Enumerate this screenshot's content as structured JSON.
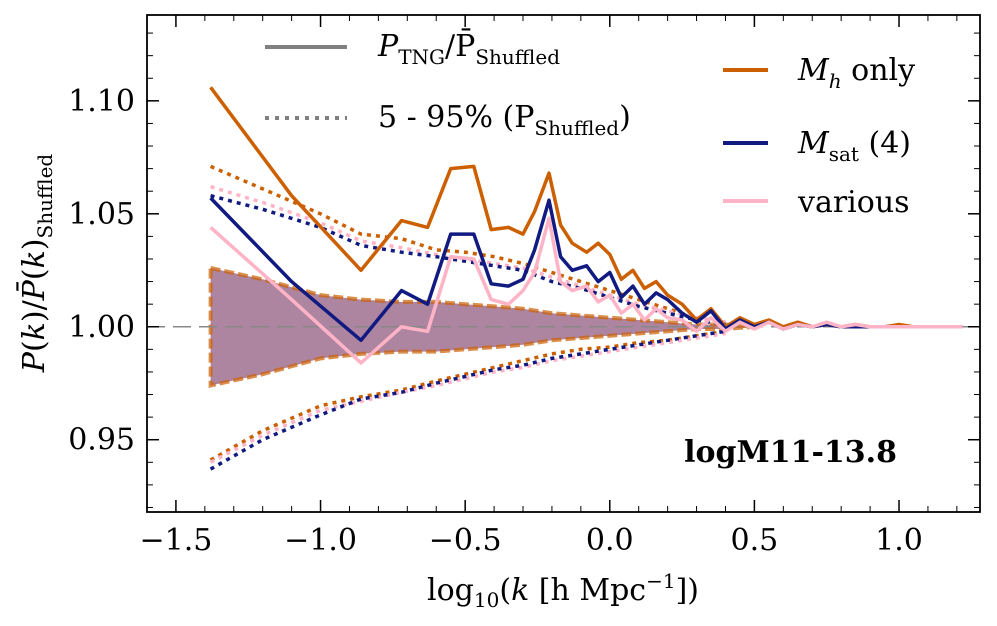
{
  "chart_data": {
    "type": "line",
    "title": "",
    "xlabel": "log10(k [h Mpc^-1])",
    "ylabel": "P(k)/P̄(k)Shuffled",
    "xlim": [
      -1.6,
      1.28
    ],
    "ylim": [
      0.918,
      1.138
    ],
    "xticks": [
      -1.5,
      -1.0,
      -0.5,
      0.0,
      0.5,
      1.0
    ],
    "xtick_labels": [
      "−1.5",
      "−1.0",
      "−0.5",
      "0.0",
      "0.5",
      "1.0"
    ],
    "yticks": [
      0.95,
      1.0,
      1.05,
      1.1
    ],
    "ytick_labels": [
      "0.95",
      "1.00",
      "1.05",
      "1.10"
    ],
    "reference_line": 1.0,
    "annotation": "logM11-13.8",
    "colors": {
      "orange": "#cc5f00",
      "navy": "#101a80",
      "pink": "#ffb3c6",
      "gray": "#808080",
      "band": "#a07090"
    },
    "legend_style": [
      {
        "label_main": "P",
        "label_sub": "TNG",
        "label_mid": "/P̄",
        "label_sub2": "Shuffled",
        "style": "solid"
      },
      {
        "label_main": "5 - 95% (P",
        "label_sub": "Shuffled",
        "label_end": ")",
        "style": "dotted"
      }
    ],
    "legend_series": [
      {
        "main": "M",
        "sub": "h",
        "rest": " only",
        "color": "#cc5f00"
      },
      {
        "main": "M",
        "sub": "sat",
        "rest": " (4)",
        "color": "#101a80"
      },
      {
        "main": "various",
        "sub": "",
        "rest": "",
        "color": "#ffb3c6"
      }
    ],
    "series": [
      {
        "name": "Mh only",
        "color": "#cc5f00",
        "x": [
          -1.38,
          -1.1,
          -0.86,
          -0.72,
          -0.63,
          -0.55,
          -0.47,
          -0.41,
          -0.35,
          -0.3,
          -0.26,
          -0.21,
          -0.17,
          -0.13,
          -0.08,
          -0.04,
          0.0,
          0.04,
          0.08,
          0.12,
          0.16,
          0.2,
          0.25,
          0.3,
          0.35,
          0.4,
          0.45,
          0.5,
          0.55,
          0.6,
          0.65,
          0.7,
          0.75,
          0.8,
          0.85,
          0.9,
          0.95,
          1.0,
          1.05,
          1.1,
          1.15,
          1.22
        ],
        "values": [
          1.106,
          1.058,
          1.025,
          1.047,
          1.044,
          1.07,
          1.071,
          1.043,
          1.044,
          1.041,
          1.051,
          1.068,
          1.045,
          1.037,
          1.033,
          1.037,
          1.032,
          1.021,
          1.025,
          1.017,
          1.02,
          1.014,
          1.01,
          1.003,
          1.008,
          1.0,
          1.004,
          1.001,
          1.003,
          1.0,
          1.002,
          1.0,
          1.001,
          1.0,
          1.001,
          1.0,
          1.0,
          1.001,
          1.0,
          1.0,
          1.0,
          1.0
        ]
      },
      {
        "name": "Msat (4)",
        "color": "#101a80",
        "x": [
          -1.38,
          -1.1,
          -0.86,
          -0.72,
          -0.63,
          -0.55,
          -0.47,
          -0.41,
          -0.35,
          -0.3,
          -0.26,
          -0.21,
          -0.17,
          -0.13,
          -0.08,
          -0.04,
          0.0,
          0.04,
          0.08,
          0.12,
          0.16,
          0.2,
          0.25,
          0.3,
          0.35,
          0.4,
          0.45,
          0.5,
          0.55,
          0.6,
          0.65,
          0.7,
          0.75,
          0.8,
          0.85,
          0.9,
          0.95,
          1.0,
          1.05,
          1.1,
          1.15,
          1.22
        ],
        "values": [
          1.057,
          1.02,
          0.994,
          1.016,
          1.01,
          1.041,
          1.041,
          1.019,
          1.018,
          1.021,
          1.034,
          1.056,
          1.031,
          1.025,
          1.027,
          1.02,
          1.024,
          1.013,
          1.018,
          1.01,
          1.015,
          1.012,
          1.006,
          1.002,
          1.007,
          0.999,
          1.003,
          1.0,
          1.002,
          0.999,
          1.001,
          1.0,
          1.001,
          1.0,
          1.0,
          1.0,
          1.0,
          1.0,
          1.0,
          1.0,
          1.0,
          1.0
        ]
      },
      {
        "name": "various",
        "color": "#ffb3c6",
        "x": [
          -1.38,
          -1.1,
          -0.86,
          -0.72,
          -0.63,
          -0.55,
          -0.47,
          -0.41,
          -0.35,
          -0.3,
          -0.26,
          -0.21,
          -0.17,
          -0.13,
          -0.08,
          -0.04,
          0.0,
          0.04,
          0.08,
          0.12,
          0.16,
          0.2,
          0.25,
          0.3,
          0.35,
          0.4,
          0.45,
          0.5,
          0.55,
          0.6,
          0.65,
          0.7,
          0.75,
          0.8,
          0.85,
          0.9,
          0.95,
          1.0,
          1.05,
          1.1,
          1.15,
          1.22
        ],
        "values": [
          1.044,
          1.012,
          0.984,
          1.0,
          0.998,
          1.031,
          1.03,
          1.012,
          1.01,
          1.016,
          1.024,
          1.048,
          1.02,
          1.016,
          1.018,
          1.011,
          1.014,
          1.006,
          1.01,
          1.003,
          1.008,
          1.004,
          1.003,
          0.998,
          1.004,
          0.998,
          1.002,
          0.999,
          1.002,
          0.999,
          1.001,
          1.0,
          1.002,
          1.0,
          1.001,
          1.0,
          1.0,
          1.0,
          1.0,
          1.0,
          1.0,
          1.0
        ]
      }
    ],
    "percentile_5_95": {
      "x": [
        -1.38,
        -1.2,
        -1.0,
        -0.86,
        -0.72,
        -0.6,
        -0.5,
        -0.4,
        -0.3,
        -0.2,
        -0.1,
        0.0,
        0.1,
        0.2,
        0.3,
        0.4
      ],
      "upper_orange": [
        1.071,
        1.061,
        1.05,
        1.041,
        1.039,
        1.034,
        1.033,
        1.031,
        1.028,
        1.024,
        1.02,
        1.016,
        1.012,
        1.008,
        1.004,
        1.002
      ],
      "lower_orange": [
        0.941,
        0.954,
        0.965,
        0.969,
        0.972,
        0.976,
        0.979,
        0.982,
        0.985,
        0.988,
        0.99,
        0.991,
        0.993,
        0.994,
        0.996,
        0.998
      ],
      "upper_navy": [
        1.058,
        1.052,
        1.044,
        1.036,
        1.033,
        1.031,
        1.029,
        1.027,
        1.025,
        1.02,
        1.017,
        1.013,
        1.009,
        1.006,
        1.003,
        1.001
      ],
      "lower_navy": [
        0.937,
        0.95,
        0.961,
        0.968,
        0.971,
        0.975,
        0.978,
        0.981,
        0.983,
        0.986,
        0.988,
        0.99,
        0.992,
        0.994,
        0.996,
        0.998
      ],
      "upper_pink": [
        1.062,
        1.055,
        1.046,
        1.038,
        1.035,
        1.032,
        1.03,
        1.028,
        1.026,
        1.022,
        1.018,
        1.014,
        1.01,
        1.007,
        1.004,
        1.002
      ],
      "lower_pink": [
        0.94,
        0.952,
        0.963,
        0.967,
        0.971,
        0.974,
        0.977,
        0.98,
        0.982,
        0.985,
        0.987,
        0.989,
        0.991,
        0.993,
        0.995,
        0.997
      ]
    },
    "shuffled_band": {
      "x": [
        -1.38,
        -1.2,
        -1.0,
        -0.86,
        -0.72,
        -0.6,
        -0.5,
        -0.4,
        -0.3,
        -0.2,
        -0.1,
        0.0,
        0.1,
        0.2,
        0.3,
        0.4,
        0.5
      ],
      "upper": [
        1.026,
        1.021,
        1.014,
        1.012,
        1.011,
        1.011,
        1.01,
        1.009,
        1.008,
        1.006,
        1.005,
        1.004,
        1.003,
        1.002,
        1.001,
        1.001,
        1.0
      ],
      "lower": [
        0.974,
        0.979,
        0.986,
        0.988,
        0.989,
        0.989,
        0.99,
        0.991,
        0.992,
        0.994,
        0.995,
        0.996,
        0.997,
        0.998,
        0.999,
        0.999,
        1.0
      ]
    }
  }
}
